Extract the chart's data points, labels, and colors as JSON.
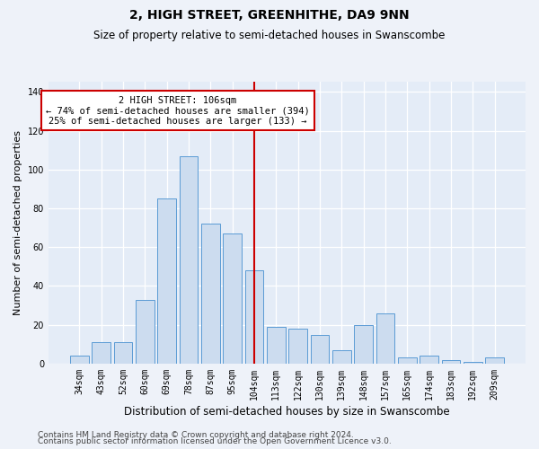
{
  "title": "2, HIGH STREET, GREENHITHE, DA9 9NN",
  "subtitle": "Size of property relative to semi-detached houses in Swanscombe",
  "xlabel": "Distribution of semi-detached houses by size in Swanscombe",
  "ylabel": "Number of semi-detached properties",
  "categories": [
    "34sqm",
    "43sqm",
    "52sqm",
    "60sqm",
    "69sqm",
    "78sqm",
    "87sqm",
    "95sqm",
    "104sqm",
    "113sqm",
    "122sqm",
    "130sqm",
    "139sqm",
    "148sqm",
    "157sqm",
    "165sqm",
    "174sqm",
    "183sqm",
    "192sqm",
    "209sqm"
  ],
  "values": [
    4,
    11,
    11,
    33,
    85,
    107,
    72,
    67,
    48,
    19,
    18,
    15,
    7,
    20,
    26,
    3,
    4,
    2,
    1,
    3
  ],
  "bar_color": "#ccdcef",
  "bar_edge_color": "#5b9bd5",
  "vline_x_index": 8,
  "vline_color": "#cc0000",
  "annotation_line1": "2 HIGH STREET: 106sqm",
  "annotation_line2": "← 74% of semi-detached houses are smaller (394)",
  "annotation_line3": "25% of semi-detached houses are larger (133) →",
  "annotation_box_color": "#ffffff",
  "annotation_box_edge": "#cc0000",
  "ylim": [
    0,
    145
  ],
  "yticks": [
    0,
    20,
    40,
    60,
    80,
    100,
    120,
    140
  ],
  "footer_line1": "Contains HM Land Registry data © Crown copyright and database right 2024.",
  "footer_line2": "Contains public sector information licensed under the Open Government Licence v3.0.",
  "background_color": "#eef2f9",
  "plot_background_color": "#e4ecf7",
  "grid_color": "#ffffff",
  "title_fontsize": 10,
  "subtitle_fontsize": 8.5,
  "xlabel_fontsize": 8.5,
  "ylabel_fontsize": 8,
  "tick_fontsize": 7,
  "annotation_fontsize": 7.5,
  "footer_fontsize": 6.5
}
